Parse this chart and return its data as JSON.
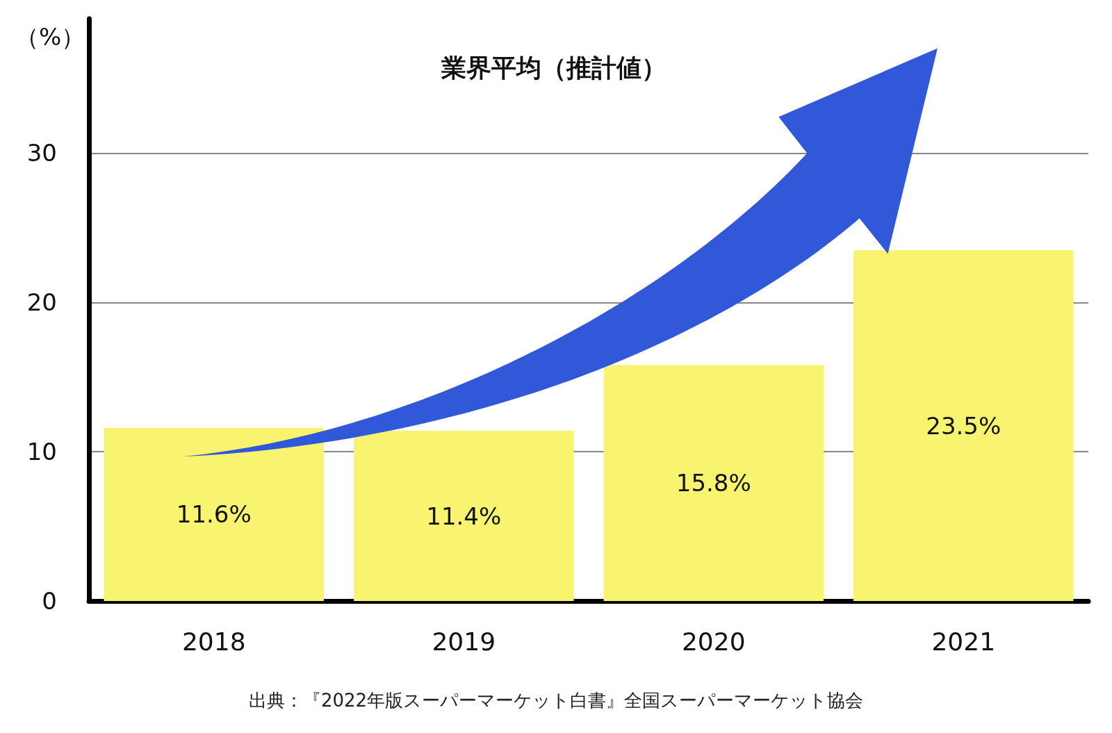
{
  "chart_data": {
    "type": "bar",
    "title": "業界平均（推計値）",
    "ylabel": "（%）",
    "categories": [
      "2018",
      "2019",
      "2020",
      "2021"
    ],
    "values": [
      11.6,
      11.4,
      15.8,
      23.5
    ],
    "value_labels": [
      "11.6%",
      "11.4%",
      "15.8%",
      "23.5%"
    ],
    "color": "#f9f470",
    "ylim": [
      0,
      39
    ],
    "yticks": [
      0,
      10,
      20,
      30
    ],
    "grid": "y",
    "annotations": [
      "出典：『2022年版スーパーマーケット白書』全国スーパーマーケット協会"
    ]
  }
}
